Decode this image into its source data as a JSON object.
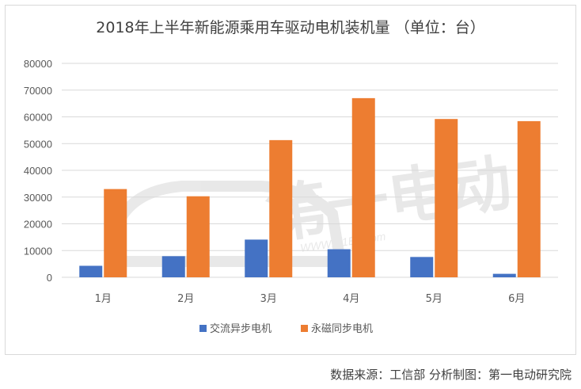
{
  "chart_data": {
    "type": "bar",
    "title": "2018年上半年新能源乘用车驱动电机装机量 （单位：台）",
    "categories": [
      "1月",
      "2月",
      "3月",
      "4月",
      "5月",
      "6月"
    ],
    "series": [
      {
        "name": "交流异步电机",
        "color": "#4472C4",
        "values": [
          4300,
          7900,
          14100,
          10500,
          7600,
          1300
        ]
      },
      {
        "name": "永磁同步电机",
        "color": "#ED7D31",
        "values": [
          33000,
          30300,
          51300,
          67000,
          59200,
          58400
        ]
      }
    ],
    "ylim": [
      0,
      80000
    ],
    "yticks": [
      0,
      10000,
      20000,
      30000,
      40000,
      50000,
      60000,
      70000,
      80000
    ],
    "grid": true,
    "legend_position": "bottom",
    "watermark": "第一电动 WWW.D1EV.com"
  },
  "source_note": "数据来源：工信部 分析制图：第一电动研究院"
}
